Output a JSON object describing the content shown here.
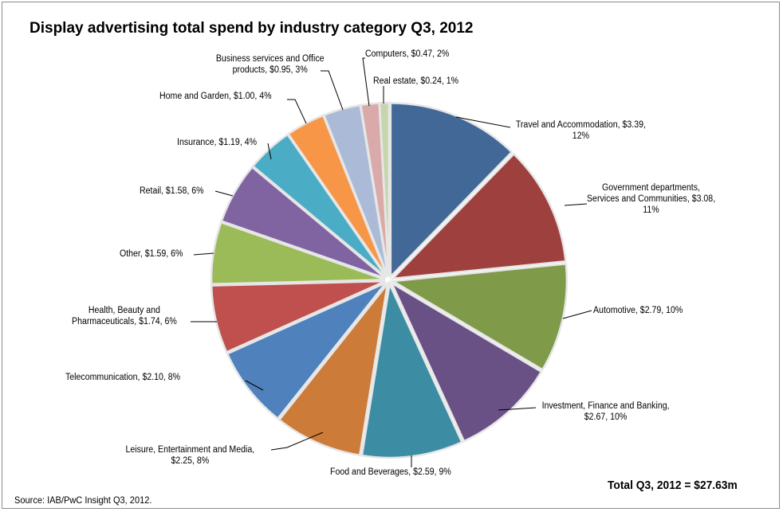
{
  "chart_data": {
    "type": "pie",
    "title": "Display advertising total spend by industry category Q3, 2012",
    "unit": "$m",
    "slices": [
      {
        "name": "Travel and Accommodation",
        "value": 3.39,
        "percent": 12,
        "label": [
          "Travel and Accommodation, $3.39,",
          "12%"
        ],
        "color": "#416897"
      },
      {
        "name": "Government departments, Services and Communities",
        "value": 3.08,
        "percent": 11,
        "label": [
          "Government departments,",
          "Services and Communities, $3.08,",
          "11%"
        ],
        "color": "#9e413e"
      },
      {
        "name": "Automotive",
        "value": 2.79,
        "percent": 10,
        "label": [
          "Automotive, $2.79, 10%"
        ],
        "color": "#7f9a48"
      },
      {
        "name": "Investment, Finance and Banking",
        "value": 2.67,
        "percent": 10,
        "label": [
          "Investment, Finance and Banking,",
          "$2.67, 10%"
        ],
        "color": "#695185"
      },
      {
        "name": "Food and Beverages",
        "value": 2.59,
        "percent": 9,
        "label": [
          "Food and Beverages, $2.59, 9%"
        ],
        "color": "#3c8da3"
      },
      {
        "name": "Leisure, Entertainment and Media",
        "value": 2.25,
        "percent": 8,
        "label": [
          "Leisure, Entertainment and Media,",
          "$2.25, 8%"
        ],
        "color": "#cc7b38"
      },
      {
        "name": "Telecommunication",
        "value": 2.1,
        "percent": 8,
        "label": [
          "Telecommunication, $2.10, 8%"
        ],
        "color": "#4f81bd"
      },
      {
        "name": "Health, Beauty and Pharmaceuticals",
        "value": 1.74,
        "percent": 6,
        "label": [
          "Health, Beauty and",
          "Pharmaceuticals, $1.74, 6%"
        ],
        "color": "#c0504d"
      },
      {
        "name": "Other",
        "value": 1.59,
        "percent": 6,
        "label": [
          "Other, $1.59, 6%"
        ],
        "color": "#9bbb59"
      },
      {
        "name": "Retail",
        "value": 1.58,
        "percent": 6,
        "label": [
          "Retail, $1.58, 6%"
        ],
        "color": "#8064a2"
      },
      {
        "name": "Insurance",
        "value": 1.19,
        "percent": 4,
        "label": [
          "Insurance, $1.19, 4%"
        ],
        "color": "#4bacc6"
      },
      {
        "name": "Home and Garden",
        "value": 1.0,
        "percent": 4,
        "label": [
          "Home and Garden, $1.00, 4%"
        ],
        "color": "#f79646"
      },
      {
        "name": "Business services and Office products",
        "value": 0.95,
        "percent": 3,
        "label": [
          "Business services and Office",
          "products, $0.95, 3%"
        ],
        "color": "#aabad7"
      },
      {
        "name": "Computers",
        "value": 0.47,
        "percent": 2,
        "label": [
          "Computers, $0.47, 2%"
        ],
        "color": "#d9aaa9"
      },
      {
        "name": "Real estate",
        "value": 0.24,
        "percent": 1,
        "label": [
          "Real estate, $0.24, 1%"
        ],
        "color": "#c6d6ac"
      }
    ],
    "total_text": "Total Q3, 2012 = $27.63m",
    "source": "Source: IAB/PwC Insight Q3, 2012.",
    "legend": "none",
    "start": "12 o'clock, clockwise"
  }
}
